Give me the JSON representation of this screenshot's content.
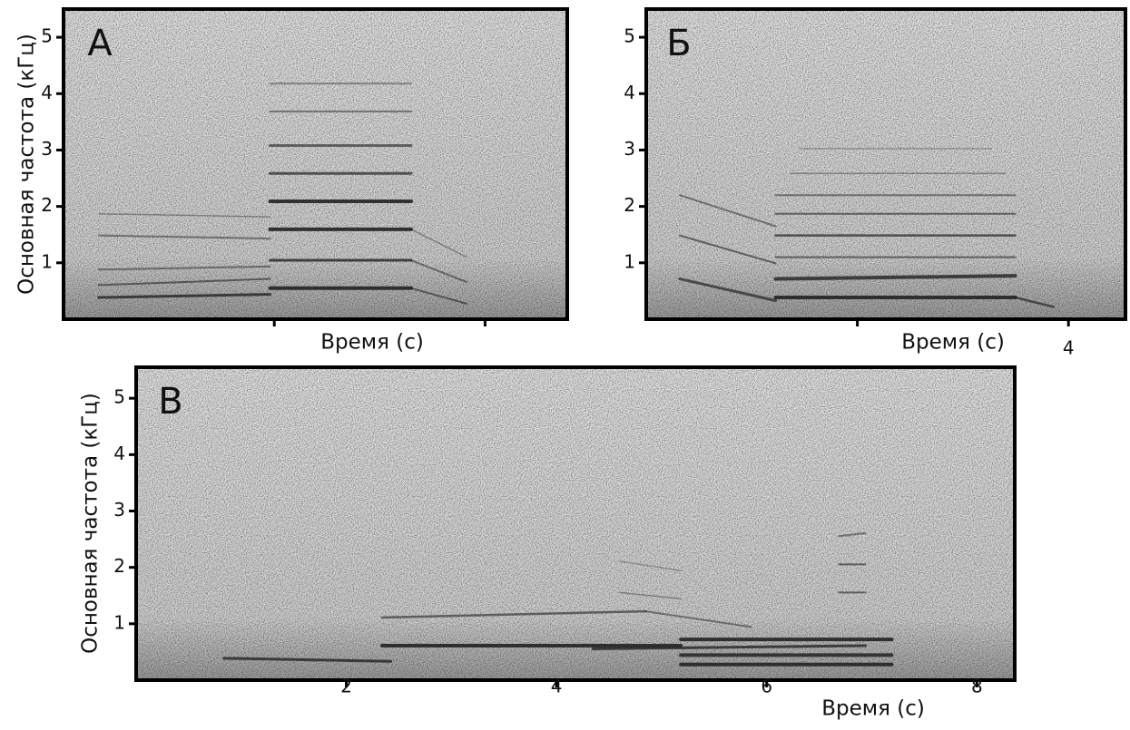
{
  "chart_data": [
    {
      "type": "spectrogram",
      "title": "А",
      "ylabel": "Основная частота (кГц)",
      "xlabel": "Время (с)",
      "xlim": [
        0,
        2.39
      ],
      "xticks": [
        {
          "value": 1,
          "label": null
        },
        {
          "value": 2,
          "label": null
        }
      ],
      "ylim": [
        0,
        5.5
      ],
      "yticks": [
        1,
        2,
        3,
        4,
        5
      ]
    },
    {
      "type": "spectrogram",
      "title": "Б",
      "xlabel": "Время (с)",
      "xlim": [
        2,
        4.27
      ],
      "xticks": [
        {
          "value": 3,
          "label": null
        },
        4
      ],
      "ylim": [
        0,
        5.5
      ],
      "yticks": [
        1,
        2,
        3,
        4,
        5
      ]
    },
    {
      "type": "spectrogram",
      "title": "В",
      "ylabel": "Основная частота (кГц)",
      "xlabel": "Время (с)",
      "xlim": [
        0,
        8.36
      ],
      "xticks": [
        2,
        4,
        6,
        8
      ],
      "ylim": [
        0,
        5.55
      ],
      "yticks": [
        1,
        2,
        3,
        4,
        5
      ]
    }
  ]
}
